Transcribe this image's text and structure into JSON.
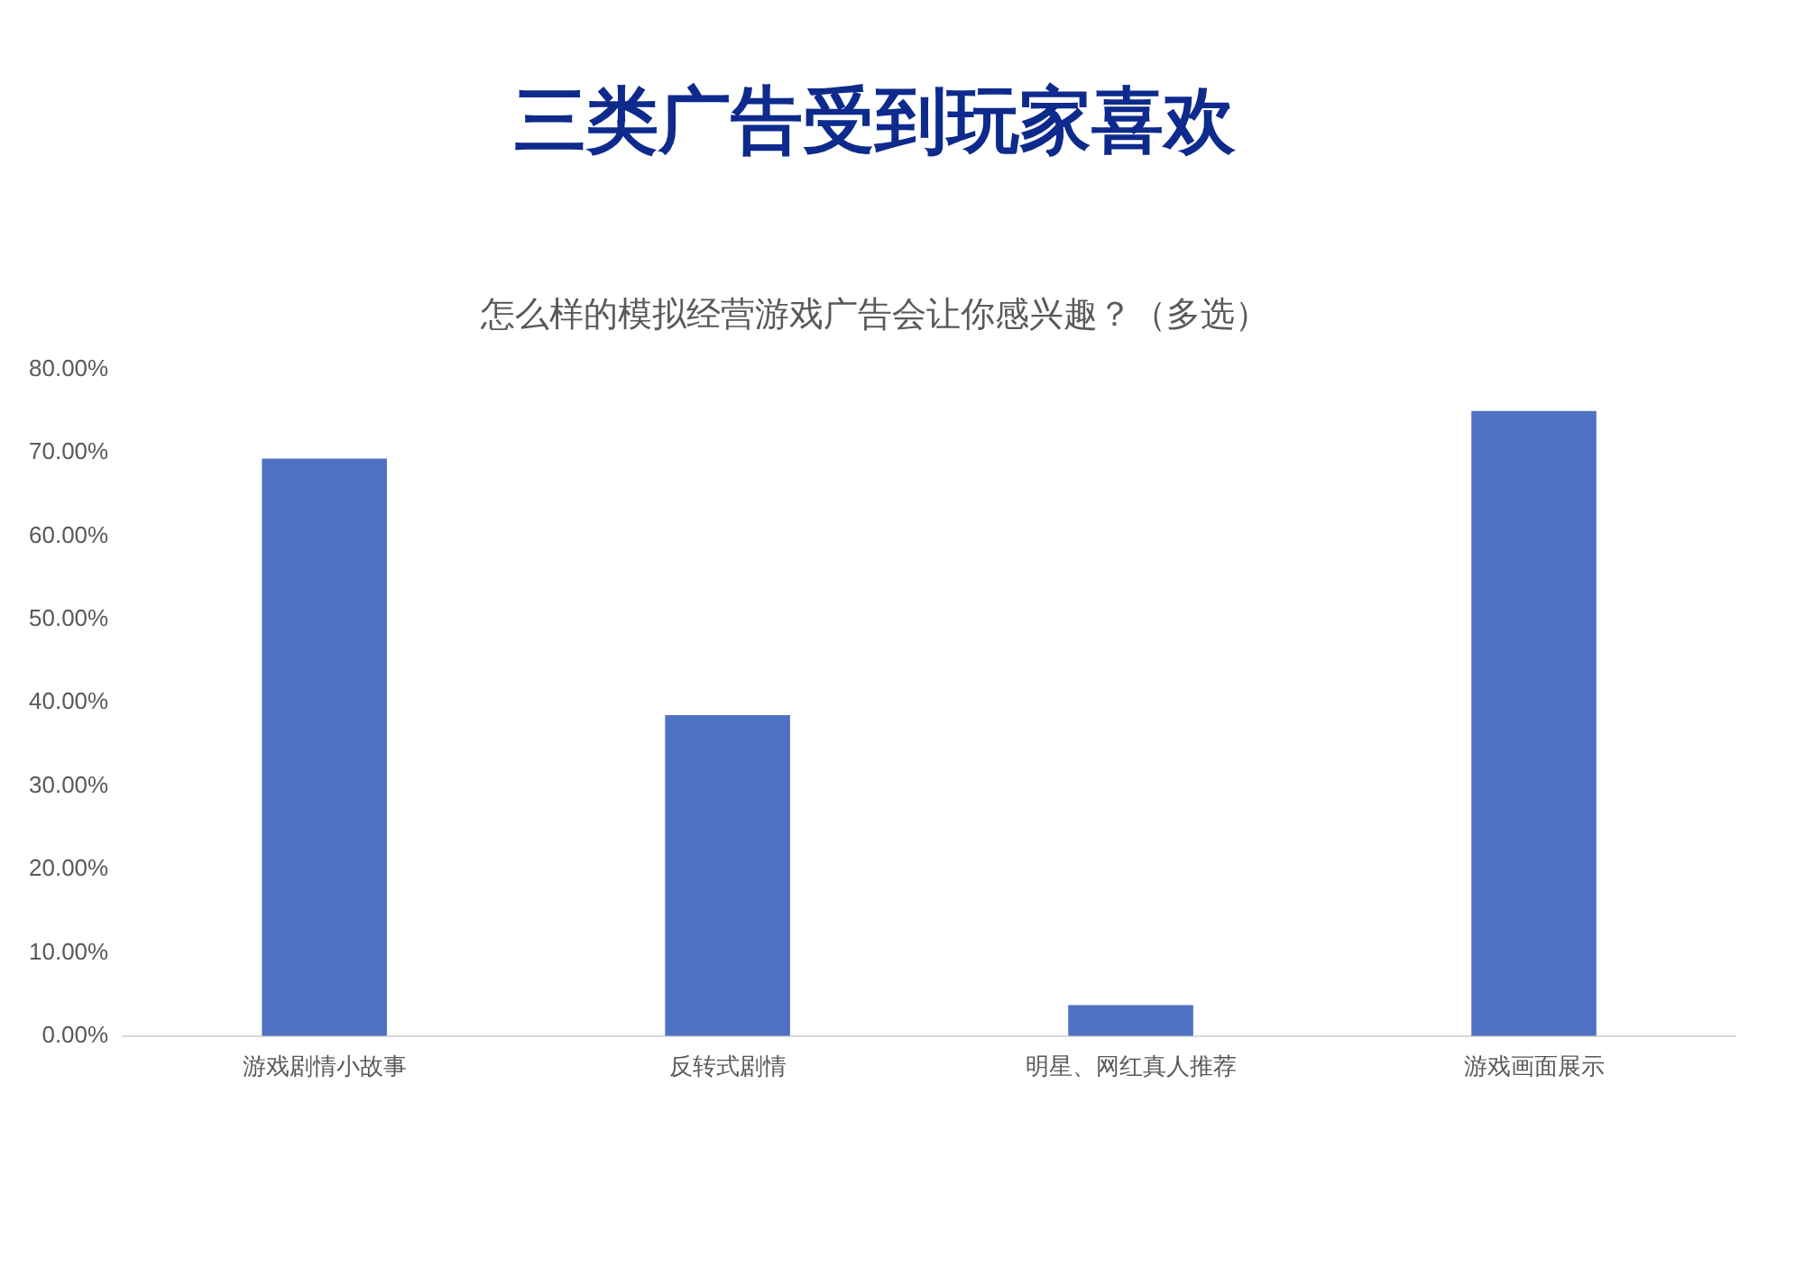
{
  "chart_data": {
    "type": "bar",
    "title": "三类广告受到玩家喜欢",
    "subtitle": "怎么样的模拟经营游戏广告会让你感兴趣？（多选）",
    "categories": [
      "游戏剧情小故事",
      "反转式剧情",
      "明星、网红真人推荐",
      "游戏画面展示"
    ],
    "values": [
      69.3,
      38.5,
      3.7,
      75.0
    ],
    "color": "#4f71c1",
    "ylim": [
      0,
      80
    ],
    "yticks": [
      {
        "value": 0,
        "label": "0.00%"
      },
      {
        "value": 10,
        "label": "10.00%"
      },
      {
        "value": 20,
        "label": "20.00%"
      },
      {
        "value": 30,
        "label": "30.00%"
      },
      {
        "value": 40,
        "label": "40.00%"
      },
      {
        "value": 50,
        "label": "50.00%"
      },
      {
        "value": 60,
        "label": "60.00%"
      },
      {
        "value": 70,
        "label": "70.00%"
      },
      {
        "value": 80,
        "label": "80.00%"
      }
    ],
    "grid": false,
    "legend": false
  }
}
